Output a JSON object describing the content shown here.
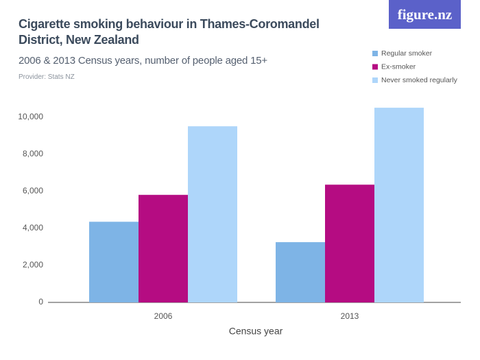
{
  "brand": "figure.nz",
  "chart_data": {
    "type": "bar",
    "title": "Cigarette smoking behaviour in Thames-Coromandel District, New Zealand",
    "subtitle": "2006 & 2013 Census years, number of people aged 15+",
    "provider": "Provider: Stats NZ",
    "x_label": "Census year",
    "categories": [
      "2006",
      "2013"
    ],
    "series": [
      {
        "name": "Regular smoker",
        "color": "#7eb4e6",
        "values": [
          4350,
          3250
        ]
      },
      {
        "name": "Ex-smoker",
        "color": "#b50c82",
        "values": [
          5800,
          6350
        ]
      },
      {
        "name": "Never smoked regularly",
        "color": "#aed6fa",
        "values": [
          9500,
          10500
        ]
      }
    ],
    "ylim": [
      0,
      10800
    ],
    "yticks": [
      0,
      {
        "value": 2000,
        "label": "2,000"
      },
      {
        "value": 4000,
        "label": "4,000"
      },
      {
        "value": 6000,
        "label": "6,000"
      },
      {
        "value": 8000,
        "label": "8,000"
      },
      {
        "value": 10000,
        "label": "10,000"
      }
    ],
    "grid": false,
    "legend": "top-right"
  }
}
